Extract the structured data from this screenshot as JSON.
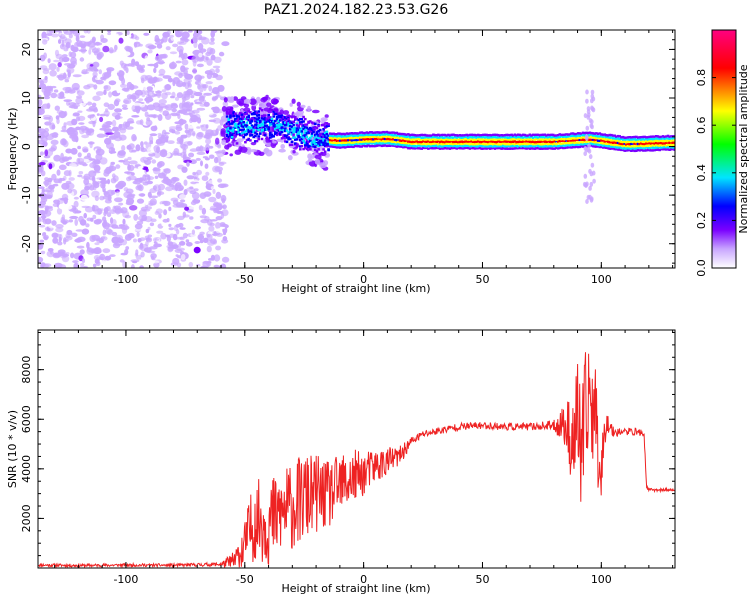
{
  "title": "PAZ1.2024.182.23.53.G26",
  "chart_data": [
    {
      "type": "heatmap",
      "xlabel": "Height of straight line (km)",
      "ylabel": "Frequency (Hz)",
      "xlim": [
        -137,
        131
      ],
      "ylim": [
        -25,
        24
      ],
      "xticks": [
        -100,
        -50,
        0,
        50,
        100
      ],
      "yticks": [
        -20,
        -10,
        0,
        10,
        20
      ],
      "colorbar": {
        "label": "Normalized spectral amplitude",
        "ticks": [
          0.0,
          0.2,
          0.4,
          0.6,
          0.8
        ],
        "range": [
          0,
          1
        ],
        "colors": [
          "#ffffff",
          "#c9a6ff",
          "#7a00ff",
          "#0000ff",
          "#00e5ff",
          "#00ff00",
          "#ffff00",
          "#ff0000",
          "#ff0080"
        ]
      },
      "ridge": [
        {
          "x": -55,
          "y": 4
        },
        {
          "x": -45,
          "y": 4.5
        },
        {
          "x": -35,
          "y": 4.5
        },
        {
          "x": -30,
          "y": 3.5
        },
        {
          "x": -25,
          "y": 2.5
        },
        {
          "x": -20,
          "y": 1.5
        },
        {
          "x": -10,
          "y": 1.2
        },
        {
          "x": 0,
          "y": 1.5
        },
        {
          "x": 10,
          "y": 1.6
        },
        {
          "x": 20,
          "y": 1
        },
        {
          "x": 50,
          "y": 1
        },
        {
          "x": 80,
          "y": 1
        },
        {
          "x": 95,
          "y": 1.5
        },
        {
          "x": 110,
          "y": 0.5
        },
        {
          "x": 131,
          "y": 0.8
        }
      ]
    },
    {
      "type": "line",
      "xlabel": "Height of straight line (km)",
      "ylabel": "SNR (10 * v/v)",
      "xlim": [
        -137,
        131
      ],
      "ylim": [
        0,
        9600
      ],
      "xticks": [
        -100,
        -50,
        0,
        50,
        100
      ],
      "yticks": [
        2000,
        4000,
        6000,
        8000
      ],
      "line_color": "#ee2222",
      "series": [
        {
          "x": [
            -137,
            -120,
            -100,
            -80,
            -60,
            -55,
            -52,
            -50,
            -48,
            -45,
            -40,
            -35,
            -30,
            -25,
            -20,
            -15,
            -10,
            -5,
            0,
            5,
            10,
            15,
            20,
            25,
            30,
            35,
            40,
            50,
            60,
            70,
            80,
            85,
            88,
            90,
            92,
            94,
            96,
            98,
            100,
            102,
            105,
            110,
            115,
            118,
            119,
            120,
            125,
            131
          ],
          "y": [
            120,
            100,
            120,
            110,
            150,
            250,
            500,
            900,
            1500,
            2000,
            1800,
            2200,
            2500,
            2800,
            3000,
            2900,
            3300,
            3600,
            3800,
            4100,
            4300,
            4500,
            5100,
            5400,
            5500,
            5600,
            5700,
            5750,
            5700,
            5700,
            5750,
            5800,
            5000,
            6000,
            4500,
            6500,
            7000,
            5500,
            4000,
            6000,
            5500,
            5500,
            5500,
            5400,
            3300,
            3150,
            3150,
            3150
          ],
          "amplitude": [
            60,
            60,
            60,
            60,
            80,
            400,
            800,
            1000,
            1400,
            1600,
            1800,
            1800,
            1800,
            1800,
            1600,
            1400,
            1300,
            1200,
            900,
            700,
            600,
            400,
            200,
            150,
            150,
            150,
            150,
            150,
            150,
            150,
            200,
            1000,
            1800,
            2600,
            2800,
            3000,
            2800,
            2400,
            1200,
            600,
            200,
            150,
            150,
            150,
            80,
            60,
            60,
            60
          ]
        }
      ]
    }
  ]
}
